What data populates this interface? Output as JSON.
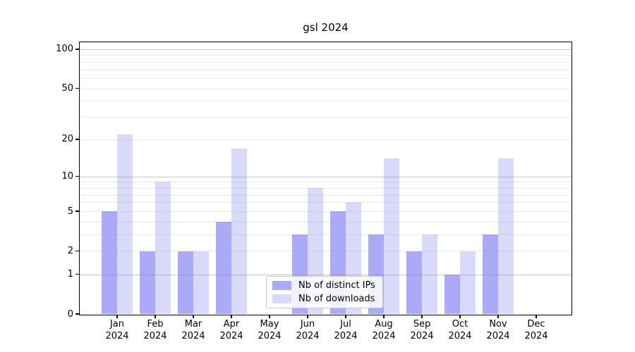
{
  "title": "gsl 2024",
  "colors": {
    "background": "#ffffff",
    "axis": "#000000",
    "grid_major": "rgba(130,130,130,0.45)",
    "grid_minor": "rgba(160,160,160,0.22)",
    "legend_border": "#c9c9c9"
  },
  "chart_data": {
    "type": "bar",
    "title": "gsl 2024",
    "categories": [
      "Jan 2024",
      "Feb 2024",
      "Mar 2024",
      "Apr 2024",
      "May 2024",
      "Jun 2024",
      "Jul 2024",
      "Aug 2024",
      "Sep 2024",
      "Oct 2024",
      "Nov 2024",
      "Dec 2024"
    ],
    "series": [
      {
        "name": "Nb of distinct IPs",
        "color": "#aaaaf8",
        "values": [
          5,
          2,
          2,
          4,
          0,
          3,
          5,
          3,
          2,
          1,
          3,
          0
        ]
      },
      {
        "name": "Nb of downloads",
        "color": "#d9d9f9",
        "values": [
          22,
          9,
          2,
          17,
          0,
          8,
          6,
          14,
          3,
          2,
          14,
          0
        ]
      }
    ],
    "yscale": "log1p",
    "ylim": [
      0,
      113
    ],
    "yticks": [
      0,
      1,
      2,
      5,
      10,
      20,
      50,
      100
    ],
    "minor_gridlines": [
      2,
      3,
      4,
      5,
      6,
      7,
      8,
      9,
      20,
      30,
      40,
      50,
      60,
      70,
      80,
      90
    ],
    "major_gridlines": [
      1,
      10,
      100
    ],
    "grid": "on",
    "legend_position": "lower center"
  }
}
